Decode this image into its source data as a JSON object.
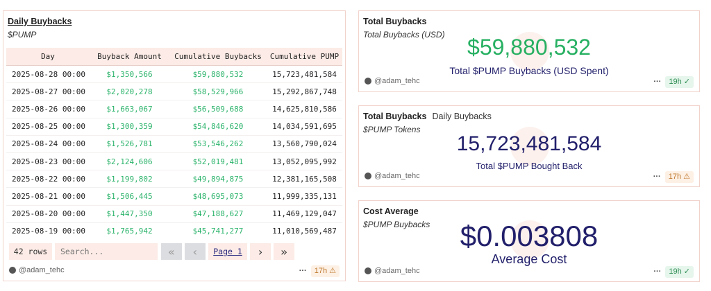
{
  "table_card": {
    "title": "Daily Buybacks",
    "subtitle": "$PUMP",
    "columns": [
      "Day",
      "Buyback Amount",
      "Cumulative Buybacks",
      "Cumulative PUMP"
    ],
    "rows": [
      [
        "2025-08-28 00:00",
        "$1,350,566",
        "$59,880,532",
        "15,723,481,584"
      ],
      [
        "2025-08-27 00:00",
        "$2,020,278",
        "$58,529,966",
        "15,292,867,748"
      ],
      [
        "2025-08-26 00:00",
        "$1,663,067",
        "$56,509,688",
        "14,625,810,586"
      ],
      [
        "2025-08-25 00:00",
        "$1,300,359",
        "$54,846,620",
        "14,034,591,695"
      ],
      [
        "2025-08-24 00:00",
        "$1,526,781",
        "$53,546,262",
        "13,560,790,024"
      ],
      [
        "2025-08-23 00:00",
        "$2,124,606",
        "$52,019,481",
        "13,052,095,992"
      ],
      [
        "2025-08-22 00:00",
        "$1,199,802",
        "$49,894,875",
        "12,381,165,508"
      ],
      [
        "2025-08-21 00:00",
        "$1,506,445",
        "$48,695,073",
        "11,999,335,131"
      ],
      [
        "2025-08-20 00:00",
        "$1,447,350",
        "$47,188,627",
        "11,469,129,047"
      ],
      [
        "2025-08-19 00:00",
        "$1,765,942",
        "$45,741,277",
        "11,010,569,487"
      ]
    ],
    "row_count": "42 rows",
    "search_placeholder": "Search...",
    "page_label": "Page 1",
    "first": "«",
    "prev": "‹",
    "next": "›",
    "last": "»",
    "author": "@adam_tehc",
    "age": "17h ⚠"
  },
  "cards": [
    {
      "title": "Total Buybacks",
      "tab2": "",
      "subtitle": "Total Buybacks (USD)",
      "value": "$59,880,532",
      "label": "Total $PUMP Buybacks (USD Spent)",
      "author": "@adam_tehc",
      "age": "19h ✓",
      "value_color": "#27b062"
    },
    {
      "title": "Total Buybacks",
      "tab2": "Daily Buybacks",
      "subtitle": "$PUMP Tokens",
      "value": "15,723,481,584",
      "label": "Total $PUMP Bought Back",
      "author": "@adam_tehc",
      "age": "17h ⚠",
      "value_color": "#22206b"
    },
    {
      "title": "Cost Average",
      "tab2": "",
      "subtitle": "$PUMP Buybacks",
      "value": "$0.003808",
      "label": "Average Cost",
      "author": "@adam_tehc",
      "age": "19h ✓",
      "value_color": "#22206b"
    }
  ]
}
